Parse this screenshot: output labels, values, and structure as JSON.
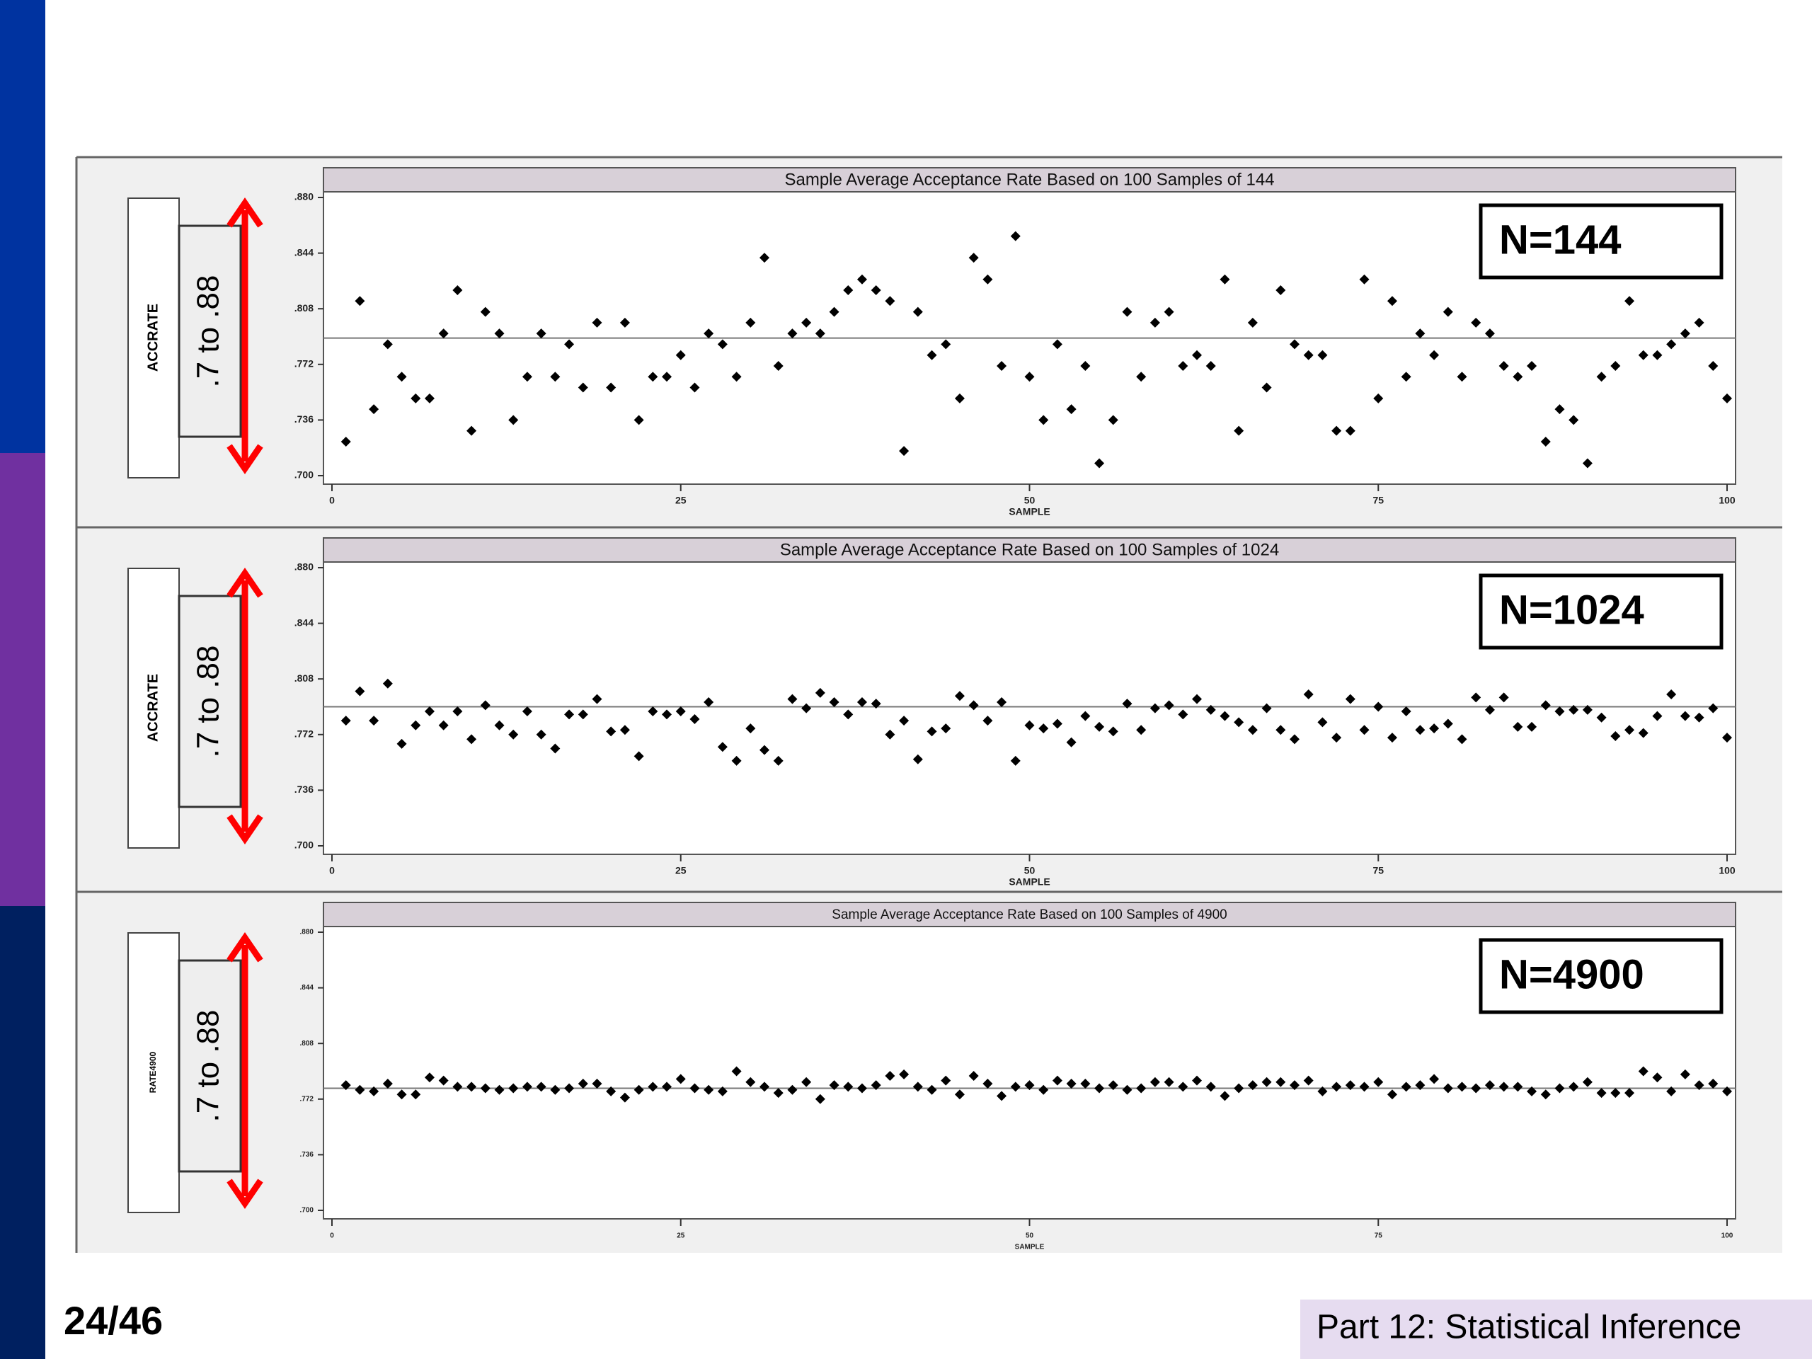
{
  "slide_number": "24/46",
  "footer": "Part 12: Statistical Inference",
  "chart_data": [
    {
      "type": "scatter",
      "title": "Sample Average Acceptance Rate Based on 100 Samples of 144",
      "y_label": "ACCRATE",
      "x_label": "SAMPLE",
      "n_label": "N=144",
      "range_label": ".7 to .88",
      "color": "#000000",
      "reference_line": 0.789,
      "x": [
        1,
        2,
        3,
        4,
        5,
        6,
        7,
        8,
        9,
        10,
        11,
        12,
        13,
        14,
        15,
        16,
        17,
        18,
        19,
        20,
        21,
        22,
        23,
        24,
        25,
        26,
        27,
        28,
        29,
        30,
        31,
        32,
        33,
        34,
        35,
        36,
        37,
        38,
        39,
        40,
        41,
        42,
        43,
        44,
        45,
        46,
        47,
        48,
        49,
        50,
        51,
        52,
        53,
        54,
        55,
        56,
        57,
        58,
        59,
        60,
        61,
        62,
        63,
        64,
        65,
        66,
        67,
        68,
        69,
        70,
        71,
        72,
        73,
        74,
        75,
        76,
        77,
        78,
        79,
        80,
        81,
        82,
        83,
        84,
        85,
        86,
        87,
        88,
        89,
        90,
        91,
        92,
        93,
        94,
        95,
        96,
        97,
        98,
        99,
        100
      ],
      "values": [
        0.722,
        0.813,
        0.743,
        0.785,
        0.764,
        0.75,
        0.75,
        0.792,
        0.82,
        0.729,
        0.806,
        0.792,
        0.736,
        0.764,
        0.792,
        0.764,
        0.785,
        0.757,
        0.799,
        0.757,
        0.799,
        0.736,
        0.764,
        0.764,
        0.778,
        0.757,
        0.792,
        0.785,
        0.764,
        0.799,
        0.841,
        0.771,
        0.792,
        0.799,
        0.792,
        0.806,
        0.82,
        0.827,
        0.82,
        0.813,
        0.716,
        0.806,
        0.778,
        0.785,
        0.75,
        0.841,
        0.827,
        0.771,
        0.855,
        0.764,
        0.736,
        0.785,
        0.743,
        0.771,
        0.708,
        0.736,
        0.806,
        0.764,
        0.799,
        0.806,
        0.771,
        0.778,
        0.771,
        0.827,
        0.729,
        0.799,
        0.757,
        0.82,
        0.785,
        0.778,
        0.778,
        0.729,
        0.729,
        0.827,
        0.75,
        0.813,
        0.764,
        0.792,
        0.778,
        0.806,
        0.764,
        0.799,
        0.792,
        0.771,
        0.764,
        0.771,
        0.722,
        0.743,
        0.736,
        0.708,
        0.764,
        0.771,
        0.813,
        0.778,
        0.778,
        0.785,
        0.792,
        0.799,
        0.771,
        0.75
      ],
      "xlim": [
        0,
        100
      ],
      "xticks": [
        0,
        25,
        50,
        75,
        100
      ],
      "ylim": [
        0.7,
        0.88
      ],
      "yticks": [
        {
          "value": 0.7,
          "label": ".700"
        },
        {
          "value": 0.736,
          "label": ".736"
        },
        {
          "value": 0.772,
          "label": ".772"
        },
        {
          "value": 0.808,
          "label": ".808"
        },
        {
          "value": 0.844,
          "label": ".844"
        },
        {
          "value": 0.88,
          "label": ".880"
        }
      ]
    },
    {
      "type": "scatter",
      "title": "Sample Average Acceptance Rate Based on 100 Samples of 1024",
      "y_label": "ACCRATE",
      "x_label": "SAMPLE",
      "n_label": "N=1024",
      "range_label": ".7 to .88",
      "color": "#000000",
      "reference_line": 0.79,
      "x": [
        1,
        2,
        3,
        4,
        5,
        6,
        7,
        8,
        9,
        10,
        11,
        12,
        13,
        14,
        15,
        16,
        17,
        18,
        19,
        20,
        21,
        22,
        23,
        24,
        25,
        26,
        27,
        28,
        29,
        30,
        31,
        32,
        33,
        34,
        35,
        36,
        37,
        38,
        39,
        40,
        41,
        42,
        43,
        44,
        45,
        46,
        47,
        48,
        49,
        50,
        51,
        52,
        53,
        54,
        55,
        56,
        57,
        58,
        59,
        60,
        61,
        62,
        63,
        64,
        65,
        66,
        67,
        68,
        69,
        70,
        71,
        72,
        73,
        74,
        75,
        76,
        77,
        78,
        79,
        80,
        81,
        82,
        83,
        84,
        85,
        86,
        87,
        88,
        89,
        90,
        91,
        92,
        93,
        94,
        95,
        96,
        97,
        98,
        99,
        100
      ],
      "values": [
        0.781,
        0.8,
        0.781,
        0.805,
        0.766,
        0.778,
        0.787,
        0.778,
        0.787,
        0.769,
        0.791,
        0.778,
        0.772,
        0.787,
        0.772,
        0.763,
        0.785,
        0.785,
        0.795,
        0.774,
        0.775,
        0.758,
        0.787,
        0.785,
        0.787,
        0.782,
        0.793,
        0.764,
        0.755,
        0.776,
        0.762,
        0.755,
        0.795,
        0.789,
        0.799,
        0.793,
        0.785,
        0.793,
        0.792,
        0.772,
        0.781,
        0.756,
        0.774,
        0.776,
        0.797,
        0.791,
        0.781,
        0.793,
        0.755,
        0.778,
        0.776,
        0.779,
        0.767,
        0.784,
        0.777,
        0.774,
        0.792,
        0.775,
        0.789,
        0.791,
        0.785,
        0.795,
        0.788,
        0.784,
        0.78,
        0.775,
        0.789,
        0.775,
        0.769,
        0.798,
        0.78,
        0.77,
        0.795,
        0.775,
        0.79,
        0.77,
        0.787,
        0.775,
        0.776,
        0.779,
        0.769,
        0.796,
        0.788,
        0.796,
        0.777,
        0.777,
        0.791,
        0.787,
        0.788,
        0.788,
        0.783,
        0.771,
        0.775,
        0.773,
        0.784,
        0.798,
        0.784,
        0.783,
        0.789,
        0.77
      ],
      "xlim": [
        0,
        100
      ],
      "xticks": [
        0,
        25,
        50,
        75,
        100
      ],
      "ylim": [
        0.7,
        0.88
      ],
      "yticks": [
        {
          "value": 0.7,
          "label": ".700"
        },
        {
          "value": 0.736,
          "label": ".736"
        },
        {
          "value": 0.772,
          "label": ".772"
        },
        {
          "value": 0.808,
          "label": ".808"
        },
        {
          "value": 0.844,
          "label": ".844"
        },
        {
          "value": 0.88,
          "label": ".880"
        }
      ]
    },
    {
      "type": "scatter",
      "title": "Sample Average Acceptance Rate Based on 100 Samples of 4900",
      "y_label": "RATE4900",
      "x_label": "SAMPLE",
      "n_label": "N=4900",
      "range_label": ".7 to .88",
      "color": "#000000",
      "reference_line": 0.779,
      "x": [
        1,
        2,
        3,
        4,
        5,
        6,
        7,
        8,
        9,
        10,
        11,
        12,
        13,
        14,
        15,
        16,
        17,
        18,
        19,
        20,
        21,
        22,
        23,
        24,
        25,
        26,
        27,
        28,
        29,
        30,
        31,
        32,
        33,
        34,
        35,
        36,
        37,
        38,
        39,
        40,
        41,
        42,
        43,
        44,
        45,
        46,
        47,
        48,
        49,
        50,
        51,
        52,
        53,
        54,
        55,
        56,
        57,
        58,
        59,
        60,
        61,
        62,
        63,
        64,
        65,
        66,
        67,
        68,
        69,
        70,
        71,
        72,
        73,
        74,
        75,
        76,
        77,
        78,
        79,
        80,
        81,
        82,
        83,
        84,
        85,
        86,
        87,
        88,
        89,
        90,
        91,
        92,
        93,
        94,
        95,
        96,
        97,
        98,
        99,
        100
      ],
      "values": [
        0.781,
        0.778,
        0.777,
        0.782,
        0.775,
        0.775,
        0.786,
        0.784,
        0.78,
        0.78,
        0.779,
        0.778,
        0.779,
        0.78,
        0.78,
        0.778,
        0.779,
        0.782,
        0.782,
        0.777,
        0.773,
        0.778,
        0.78,
        0.78,
        0.785,
        0.779,
        0.778,
        0.777,
        0.79,
        0.783,
        0.78,
        0.776,
        0.778,
        0.783,
        0.772,
        0.781,
        0.78,
        0.779,
        0.781,
        0.787,
        0.788,
        0.78,
        0.778,
        0.784,
        0.775,
        0.787,
        0.782,
        0.774,
        0.78,
        0.781,
        0.778,
        0.784,
        0.782,
        0.782,
        0.779,
        0.781,
        0.778,
        0.779,
        0.783,
        0.783,
        0.78,
        0.784,
        0.78,
        0.774,
        0.779,
        0.781,
        0.783,
        0.783,
        0.781,
        0.784,
        0.777,
        0.78,
        0.781,
        0.78,
        0.783,
        0.775,
        0.78,
        0.781,
        0.785,
        0.779,
        0.78,
        0.779,
        0.781,
        0.78,
        0.78,
        0.777,
        0.775,
        0.779,
        0.78,
        0.783,
        0.776,
        0.776,
        0.776,
        0.79,
        0.786,
        0.777,
        0.788,
        0.781,
        0.782,
        0.777
      ],
      "xlim": [
        0,
        100
      ],
      "xticks": [
        0,
        25,
        50,
        75,
        100
      ],
      "ylim": [
        0.7,
        0.88
      ],
      "yticks": [
        {
          "value": 0.7,
          "label": ".700"
        },
        {
          "value": 0.736,
          "label": ".736"
        },
        {
          "value": 0.772,
          "label": ".772"
        },
        {
          "value": 0.808,
          "label": ".808"
        },
        {
          "value": 0.844,
          "label": ".844"
        },
        {
          "value": 0.88,
          "label": ".880"
        }
      ]
    }
  ]
}
